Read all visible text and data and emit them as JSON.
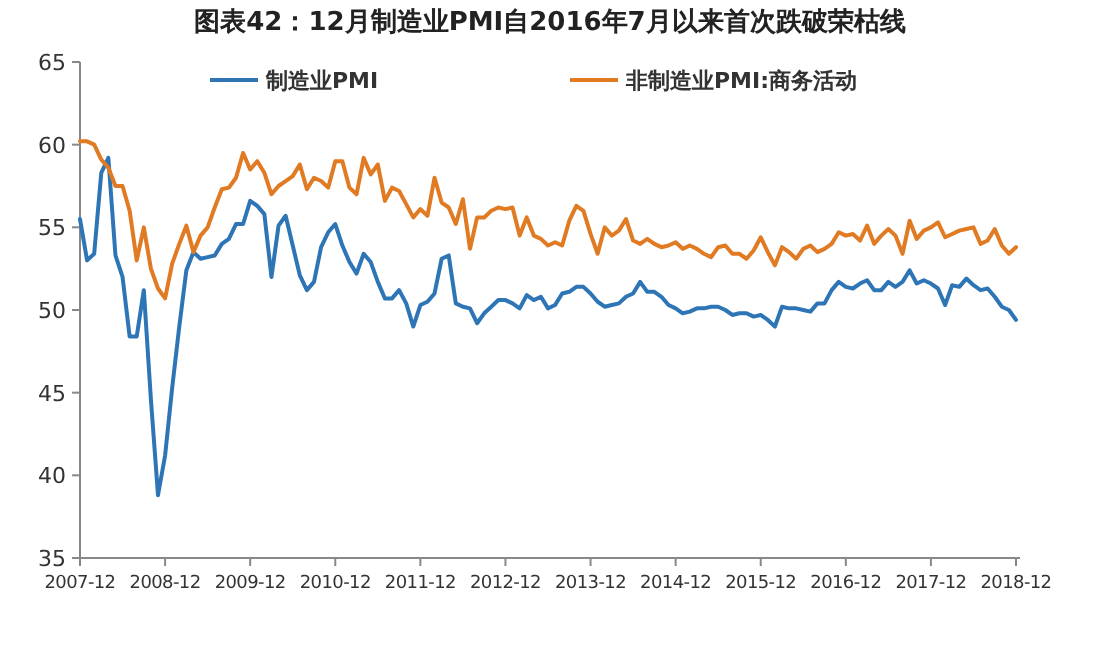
{
  "chart_data": {
    "type": "line",
    "title": "图表42：12月制造业PMI自2016年7月以来首次跌破荣枯线",
    "x": [
      "2007-12",
      "2008-01",
      "2008-02",
      "2008-03",
      "2008-04",
      "2008-05",
      "2008-06",
      "2008-07",
      "2008-08",
      "2008-09",
      "2008-10",
      "2008-11",
      "2008-12",
      "2009-01",
      "2009-02",
      "2009-03",
      "2009-04",
      "2009-05",
      "2009-06",
      "2009-07",
      "2009-08",
      "2009-09",
      "2009-10",
      "2009-11",
      "2009-12",
      "2010-01",
      "2010-02",
      "2010-03",
      "2010-04",
      "2010-05",
      "2010-06",
      "2010-07",
      "2010-08",
      "2010-09",
      "2010-10",
      "2010-11",
      "2010-12",
      "2011-01",
      "2011-02",
      "2011-03",
      "2011-04",
      "2011-05",
      "2011-06",
      "2011-07",
      "2011-08",
      "2011-09",
      "2011-10",
      "2011-11",
      "2011-12",
      "2012-01",
      "2012-02",
      "2012-03",
      "2012-04",
      "2012-05",
      "2012-06",
      "2012-07",
      "2012-08",
      "2012-09",
      "2012-10",
      "2012-11",
      "2012-12",
      "2013-01",
      "2013-02",
      "2013-03",
      "2013-04",
      "2013-05",
      "2013-06",
      "2013-07",
      "2013-08",
      "2013-09",
      "2013-10",
      "2013-11",
      "2013-12",
      "2014-01",
      "2014-02",
      "2014-03",
      "2014-04",
      "2014-05",
      "2014-06",
      "2014-07",
      "2014-08",
      "2014-09",
      "2014-10",
      "2014-11",
      "2014-12",
      "2015-01",
      "2015-02",
      "2015-03",
      "2015-04",
      "2015-05",
      "2015-06",
      "2015-07",
      "2015-08",
      "2015-09",
      "2015-10",
      "2015-11",
      "2015-12",
      "2016-01",
      "2016-02",
      "2016-03",
      "2016-04",
      "2016-05",
      "2016-06",
      "2016-07",
      "2016-08",
      "2016-09",
      "2016-10",
      "2016-11",
      "2016-12",
      "2017-01",
      "2017-02",
      "2017-03",
      "2017-04",
      "2017-05",
      "2017-06",
      "2017-07",
      "2017-08",
      "2017-09",
      "2017-10",
      "2017-11",
      "2017-12",
      "2018-01",
      "2018-02",
      "2018-03",
      "2018-04",
      "2018-05",
      "2018-06",
      "2018-07",
      "2018-08",
      "2018-09",
      "2018-10",
      "2018-11",
      "2018-12"
    ],
    "series": [
      {
        "name": "制造业PMI",
        "color": "#2e75b6",
        "values": [
          55.5,
          53.0,
          53.4,
          58.3,
          59.2,
          53.3,
          52.0,
          48.4,
          48.4,
          51.2,
          44.6,
          38.8,
          41.2,
          45.3,
          49.0,
          52.4,
          53.5,
          53.1,
          53.2,
          53.3,
          54.0,
          54.3,
          55.2,
          55.2,
          56.6,
          56.3,
          55.8,
          52.0,
          55.1,
          55.7,
          53.9,
          52.1,
          51.2,
          51.7,
          53.8,
          54.7,
          55.2,
          53.9,
          52.9,
          52.2,
          53.4,
          52.9,
          51.7,
          50.7,
          50.7,
          51.2,
          50.4,
          49.0,
          50.3,
          50.5,
          51.0,
          53.1,
          53.3,
          50.4,
          50.2,
          50.1,
          49.2,
          49.8,
          50.2,
          50.6,
          50.6,
          50.4,
          50.1,
          50.9,
          50.6,
          50.8,
          50.1,
          50.3,
          51.0,
          51.1,
          51.4,
          51.4,
          51.0,
          50.5,
          50.2,
          50.3,
          50.4,
          50.8,
          51.0,
          51.7,
          51.1,
          51.1,
          50.8,
          50.3,
          50.1,
          49.8,
          49.9,
          50.1,
          50.1,
          50.2,
          50.2,
          50.0,
          49.7,
          49.8,
          49.8,
          49.6,
          49.7,
          49.4,
          49.0,
          50.2,
          50.1,
          50.1,
          50.0,
          49.9,
          50.4,
          50.4,
          51.2,
          51.7,
          51.4,
          51.3,
          51.6,
          51.8,
          51.2,
          51.2,
          51.7,
          51.4,
          51.7,
          52.4,
          51.6,
          51.8,
          51.6,
          51.3,
          50.3,
          51.5,
          51.4,
          51.9,
          51.5,
          51.2,
          51.3,
          50.8,
          50.2,
          50.0,
          49.4
        ]
      },
      {
        "name": "非制造业PMI:商务活动",
        "color": "#e07b23",
        "values": [
          60.2,
          60.2,
          60.0,
          59.1,
          58.6,
          57.5,
          57.5,
          56.0,
          53.0,
          55.0,
          52.5,
          51.3,
          50.7,
          52.8,
          54.0,
          55.1,
          53.5,
          54.5,
          55.0,
          56.2,
          57.3,
          57.4,
          58.0,
          59.5,
          58.5,
          59.0,
          58.3,
          57.0,
          57.5,
          57.8,
          58.1,
          58.8,
          57.3,
          58.0,
          57.8,
          57.4,
          59.0,
          59.0,
          57.4,
          57.0,
          59.2,
          58.2,
          58.8,
          56.6,
          57.4,
          57.2,
          56.4,
          55.6,
          56.1,
          55.7,
          58.0,
          56.5,
          56.2,
          55.2,
          56.7,
          53.7,
          55.6,
          55.6,
          56.0,
          56.2,
          56.1,
          56.2,
          54.5,
          55.6,
          54.5,
          54.3,
          53.9,
          54.1,
          53.9,
          55.4,
          56.3,
          56.0,
          54.6,
          53.4,
          55.0,
          54.5,
          54.8,
          55.5,
          54.2,
          54.0,
          54.3,
          54.0,
          53.8,
          53.9,
          54.1,
          53.7,
          53.9,
          53.7,
          53.4,
          53.2,
          53.8,
          53.9,
          53.4,
          53.4,
          53.1,
          53.6,
          54.4,
          53.5,
          52.7,
          53.8,
          53.5,
          53.1,
          53.7,
          53.9,
          53.5,
          53.7,
          54.0,
          54.7,
          54.5,
          54.6,
          54.2,
          55.1,
          54.0,
          54.5,
          54.9,
          54.5,
          53.4,
          55.4,
          54.3,
          54.8,
          55.0,
          55.3,
          54.4,
          54.6,
          54.8,
          54.9,
          55.0,
          54.0,
          54.2,
          54.9,
          53.9,
          53.4,
          53.8
        ]
      }
    ],
    "xlim": [
      "2007-12",
      "2018-12"
    ],
    "xticks": [
      "2007-12",
      "2008-12",
      "2009-12",
      "2010-12",
      "2011-12",
      "2012-12",
      "2013-12",
      "2014-12",
      "2015-12",
      "2016-12",
      "2017-12",
      "2018-12"
    ],
    "ylim": [
      35,
      65
    ],
    "yticks": [
      35,
      40,
      45,
      50,
      55,
      60,
      65
    ],
    "grid": false,
    "legend": "top",
    "marker": "none",
    "line_style": "solid"
  }
}
